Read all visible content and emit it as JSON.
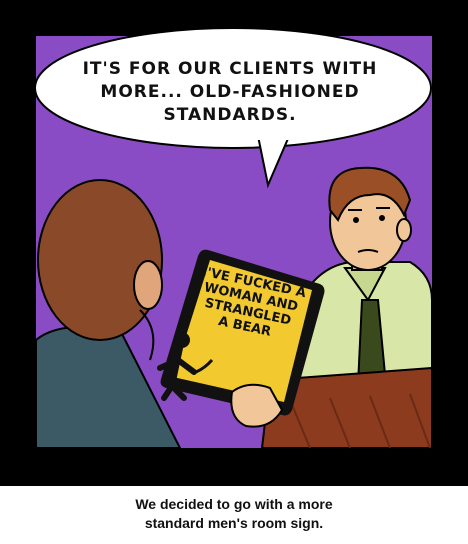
{
  "panel": {
    "speech_lines": [
      "IT'S FOR OUR CLIENTS WITH",
      "MORE... OLD-FASHIONED",
      "STANDARDS."
    ],
    "sign_lines": [
      "I'VE FUCKED A",
      "WOMAN AND",
      "STRANGLED",
      "A BEAR"
    ]
  },
  "caption_lines": [
    "We decided to go with a more",
    "standard men's room sign."
  ],
  "colors": {
    "border": "#000000",
    "background_purple": "#8a4cc4",
    "sign_yellow": "#f2c92f",
    "shirt_green": "#d8e6a8",
    "tie_green": "#3b4a1c",
    "skin": "#f1c79a",
    "hair": "#9a4f27",
    "desk": "#8c3b1f"
  }
}
